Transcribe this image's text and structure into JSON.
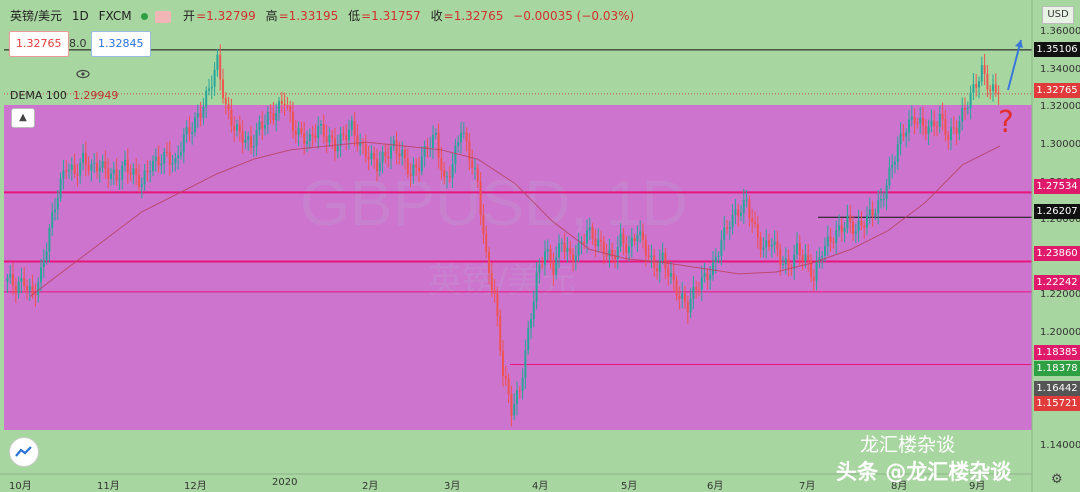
{
  "header": {
    "symbol": "英镑/美元",
    "interval": "1D",
    "source": "FXCM",
    "open_label": "开",
    "open": "=1.32799",
    "high_label": "高",
    "high": "=1.33195",
    "low_label": "低",
    "low": "=1.31757",
    "close_label": "收",
    "close": "=1.32765",
    "change": "−0.00035 (−0.03%)"
  },
  "trade": {
    "sell": "1.32765",
    "spread": "8.0",
    "buy": "1.32845"
  },
  "indicator": {
    "name": "DEMA 100",
    "value": "1.29949"
  },
  "axis": {
    "currency": "USD",
    "y_ticks": [
      "1.36000",
      "1.34000",
      "1.32000",
      "1.30000",
      "1.28000",
      "1.26000",
      "1.24000",
      "1.22000",
      "1.20000",
      "1.18000",
      "1.16000",
      "1.14000"
    ],
    "x_ticks": [
      "10月",
      "11月",
      "12月",
      "2020",
      "2月",
      "3月",
      "4月",
      "5月",
      "6月",
      "7月",
      "8月",
      "9月"
    ]
  },
  "price_tags": [
    {
      "label": "1.35106",
      "bg": "#111111",
      "fg": "#ffffff"
    },
    {
      "label": "1.32765",
      "bg": "#e03a3a",
      "fg": "#ffffff"
    },
    {
      "label": "1.27534",
      "bg": "#e01a6a",
      "fg": "#ffffff"
    },
    {
      "label": "1.26207",
      "bg": "#111111",
      "fg": "#ffffff"
    },
    {
      "label": "1.23860",
      "bg": "#e01a6a",
      "fg": "#ffffff"
    },
    {
      "label": "1.22242",
      "bg": "#e01a6a",
      "fg": "#ffffff"
    },
    {
      "label": "1.18385",
      "bg": "#e01a6a",
      "fg": "#ffffff"
    },
    {
      "label": "1.18378",
      "bg": "#2ea043",
      "fg": "#ffffff"
    },
    {
      "label": "1.16442",
      "bg": "#555555",
      "fg": "#ffffff"
    },
    {
      "label": "1.15721",
      "bg": "#e03a3a",
      "fg": "#ffffff"
    }
  ],
  "watermark": {
    "line1": "龙汇楼杂谈",
    "line2": "头条 @龙汇楼杂谈"
  },
  "annotation": "?",
  "colors": {
    "background": "#a8d6a0",
    "zone": "#cf6fd2",
    "up": "#26a69a",
    "down": "#ef5350",
    "level": "#e8157a",
    "dema": "#b8405a"
  },
  "chart_data": {
    "type": "candlestick",
    "symbol": "GBPUSD",
    "interval": "1D",
    "period": "2019-10 to 2020-09",
    "ylim": [
      1.135,
      1.37
    ],
    "zone_range": [
      1.14,
      1.32
    ],
    "levels": [
      1.35106,
      1.27534,
      1.26207,
      1.2386,
      1.22242,
      1.18385
    ],
    "close_series": [
      1.23,
      1.225,
      1.228,
      1.22,
      1.232,
      1.255,
      1.275,
      1.29,
      1.285,
      1.293,
      1.288,
      1.29,
      1.286,
      1.283,
      1.29,
      1.285,
      1.28,
      1.29,
      1.292,
      1.295,
      1.29,
      1.305,
      1.31,
      1.318,
      1.33,
      1.345,
      1.32,
      1.31,
      1.305,
      1.3,
      1.31,
      1.315,
      1.318,
      1.325,
      1.31,
      1.305,
      1.303,
      1.31,
      1.305,
      1.3,
      1.305,
      1.31,
      1.3,
      1.295,
      1.29,
      1.295,
      1.3,
      1.295,
      1.285,
      1.29,
      1.3,
      1.305,
      1.28,
      1.29,
      1.31,
      1.295,
      1.28,
      1.24,
      1.22,
      1.18,
      1.16,
      1.17,
      1.2,
      1.23,
      1.245,
      1.235,
      1.25,
      1.24,
      1.245,
      1.255,
      1.25,
      1.245,
      1.24,
      1.25,
      1.245,
      1.255,
      1.245,
      1.235,
      1.24,
      1.23,
      1.22,
      1.215,
      1.225,
      1.23,
      1.235,
      1.25,
      1.26,
      1.265,
      1.27,
      1.255,
      1.245,
      1.25,
      1.24,
      1.235,
      1.245,
      1.24,
      1.23,
      1.245,
      1.25,
      1.255,
      1.26,
      1.255,
      1.26,
      1.265,
      1.27,
      1.285,
      1.3,
      1.31,
      1.315,
      1.31,
      1.31,
      1.315,
      1.305,
      1.31,
      1.32,
      1.33,
      1.34,
      1.33,
      1.32765
    ],
    "dema_100": [
      1.22,
      1.235,
      1.25,
      1.265,
      1.275,
      1.285,
      1.293,
      1.298,
      1.3,
      1.302,
      1.3,
      1.298,
      1.293,
      1.28,
      1.26,
      1.245,
      1.24,
      1.238,
      1.235,
      1.232,
      1.233,
      1.238,
      1.245,
      1.255,
      1.27,
      1.29,
      1.3
    ]
  }
}
